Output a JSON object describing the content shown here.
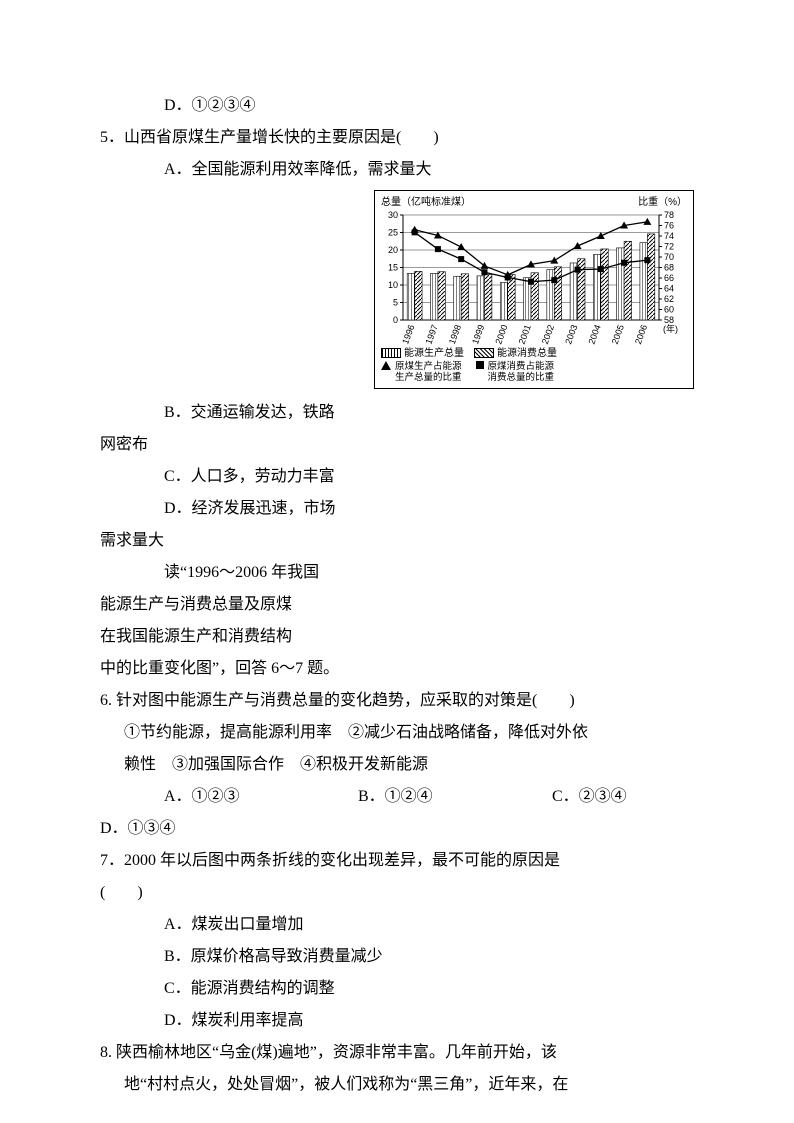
{
  "q4": {
    "option_d": "D．①②③④"
  },
  "q5": {
    "stem": "5．山西省原煤生产量增长快的主要原因是(　　)",
    "a": "A．全国能源利用效率降低，需求量大",
    "b_pre": "B．交通运输发达，铁路",
    "b_post": "网密布",
    "c": "C．人口多，劳动力丰富",
    "d_pre": "D．经济发展迅速，市场",
    "d_post": "需求量大"
  },
  "intro67_l1": "读“1996～2006 年我国",
  "intro67_l2": "能源生产与消费总量及原煤",
  "intro67_l3": "在我国能源生产和消费结构",
  "intro67_l4": "中的比重变化图”，回答 6～7 题。",
  "q6": {
    "stem": "6. 针对图中能源生产与消费总量的变化趋势，应采取的对策是(　　)",
    "line2": "①节约能源，提高能源利用率　②减少石油战略储备，降低对外依",
    "line3": "赖性　③加强国际合作　④积极开发新能源",
    "a": "A．①②③",
    "b": "B．①②④",
    "c": "C．②③④",
    "d": "D．①③④"
  },
  "q7": {
    "stem_l1": "7．2000 年以后图中两条折线的变化出现差异，最不可能的原因是",
    "stem_l2": "(　　)",
    "a": "A．煤炭出口量增加",
    "b": "B．原煤价格高导致消费量减少",
    "c": "C．能源消费结构的调整",
    "d": "D．煤炭利用率提高"
  },
  "q8": {
    "l1": "8. 陕西榆林地区“乌金(煤)遍地”，资源非常丰富。几年前开始，该",
    "l2": "地“村村点火，处处冒烟”，被人们戏称为“黑三角”，近年来，在"
  },
  "chart": {
    "title_left": "总量（亿吨标准煤）",
    "title_right": "比重（%）",
    "x_label": "(年)",
    "years": [
      "1996",
      "1997",
      "1998",
      "1999",
      "2000",
      "2001",
      "2002",
      "2003",
      "2004",
      "2005",
      "2006"
    ],
    "left_axis": {
      "min": 0,
      "max": 30,
      "ticks": [
        0,
        5,
        10,
        15,
        20,
        25,
        30
      ]
    },
    "right_axis": {
      "min": 58,
      "max": 78,
      "ticks": [
        58,
        60,
        62,
        64,
        66,
        68,
        70,
        72,
        74,
        76,
        78
      ]
    },
    "series_prod_total": [
      13.3,
      13.3,
      12.5,
      12.6,
      10.7,
      12.1,
      14.4,
      16.3,
      18.7,
      20.6,
      22.1
    ],
    "series_cons_total": [
      13.9,
      13.8,
      13.2,
      13.0,
      13.0,
      13.5,
      15.2,
      17.5,
      20.3,
      22.5,
      24.6
    ],
    "series_prod_share": [
      75.2,
      74.1,
      71.9,
      68.3,
      66.6,
      68.6,
      69.3,
      72.1,
      74.0,
      76.0,
      76.7
    ],
    "series_cons_share": [
      74.7,
      71.5,
      69.6,
      67.1,
      66.1,
      65.3,
      65.6,
      67.6,
      67.7,
      68.9,
      69.4
    ],
    "legend": {
      "bar1": "能源生产总量",
      "bar2": "能源消费总量",
      "line1a": "原煤生产占能源",
      "line1b": "生产总量的比重",
      "line2a": "原煤消费占能源",
      "line2b": "消费总量的比重"
    },
    "colors": {
      "stroke": "#000000",
      "bg": "#ffffff"
    }
  }
}
